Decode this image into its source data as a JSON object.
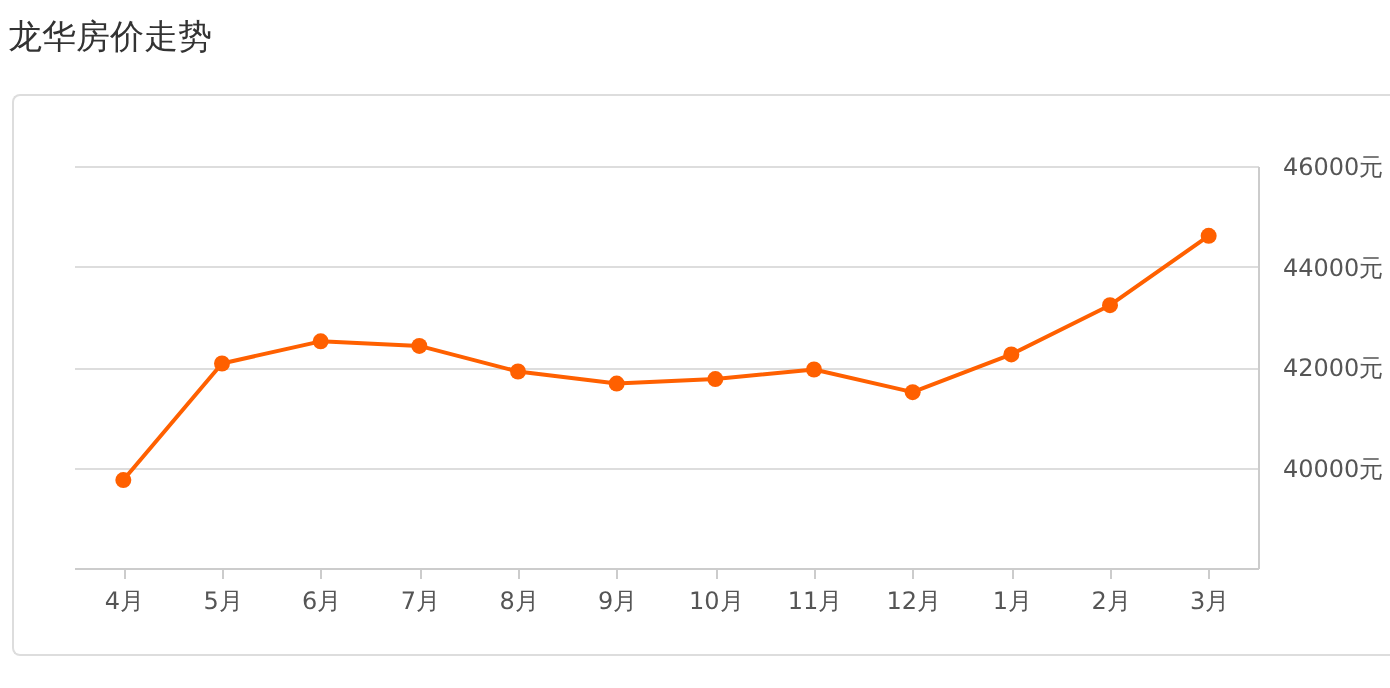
{
  "chart_data": {
    "type": "line",
    "title": "龙华房价走势",
    "categories": [
      "4月",
      "5月",
      "6月",
      "7月",
      "8月",
      "9月",
      "10月",
      "11月",
      "12月",
      "1月",
      "2月",
      "3月"
    ],
    "series": [
      {
        "color": "#ff6000",
        "values": [
          39750,
          42070,
          42510,
          42420,
          41910,
          41670,
          41760,
          41950,
          41500,
          42250,
          43230,
          44610
        ]
      }
    ],
    "ylim": [
      38000,
      46000
    ],
    "yticks": [
      {
        "value": 40000,
        "label": "40000元"
      },
      {
        "value": 42000,
        "label": "42000元"
      },
      {
        "value": 44000,
        "label": "44000元"
      },
      {
        "value": 46000,
        "label": "46000元"
      }
    ],
    "grid": "y",
    "marker": "circle",
    "line_style": "solid"
  }
}
